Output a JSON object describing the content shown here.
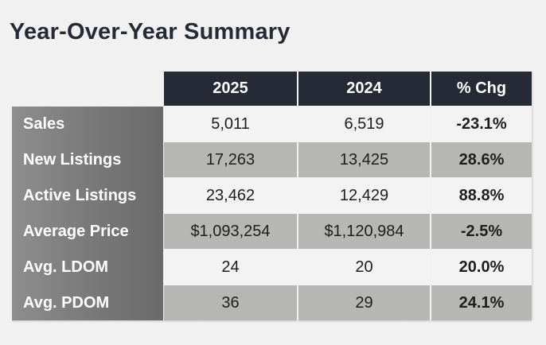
{
  "title": "Year-Over-Year Summary",
  "headers": [
    "2025",
    "2024",
    "% Chg"
  ],
  "rows": [
    {
      "label": "Sales",
      "y2025": "5,011",
      "y2024": "6,519",
      "chg": "-23.1%"
    },
    {
      "label": "New Listings",
      "y2025": "17,263",
      "y2024": "13,425",
      "chg": "28.6%"
    },
    {
      "label": "Active Listings",
      "y2025": "23,462",
      "y2024": "12,429",
      "chg": "88.8%"
    },
    {
      "label": "Average Price",
      "y2025": "$1,093,254",
      "y2024": "$1,120,984",
      "chg": "-2.5%"
    },
    {
      "label": "Avg. LDOM",
      "y2025": "24",
      "y2024": "20",
      "chg": "20.0%"
    },
    {
      "label": "Avg. PDOM",
      "y2025": "36",
      "y2024": "29",
      "chg": "24.1%"
    }
  ],
  "colors": {
    "header_bg": "#262a36",
    "row_light": "#f3f3f3",
    "row_dark": "#b6b7b5",
    "label_column": "#7a7a7a",
    "title_text": "#262a36"
  }
}
